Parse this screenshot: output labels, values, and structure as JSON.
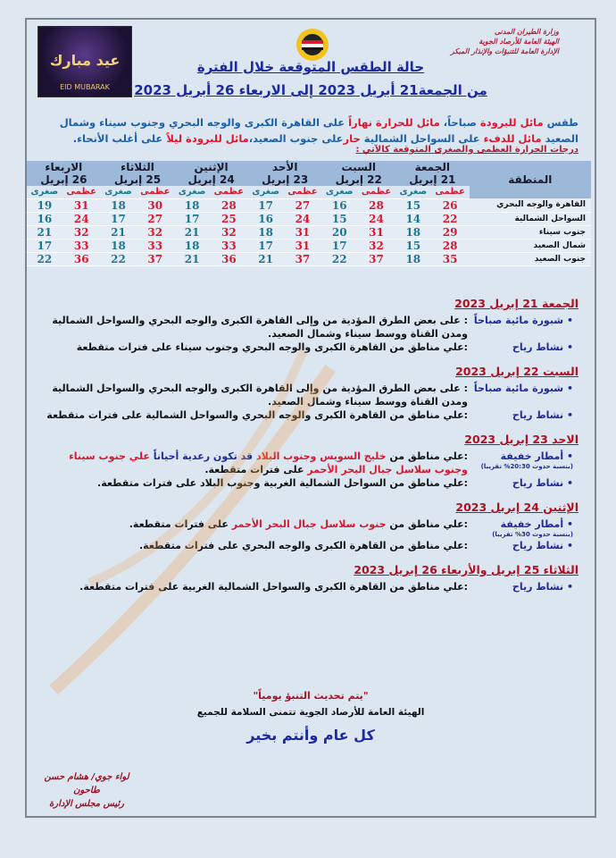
{
  "header": {
    "ministry": [
      "وزارة الطيران المدنى",
      "الهيئة العامة للأرصاد الجوية",
      "الإدارة العامة للتنبؤات والإنذار المبكر"
    ],
    "eid_image_text": "EID MUBARAK",
    "eid_image_arabic": "عيد مبارك"
  },
  "title": {
    "line1": "حالة الطقس المتوقعة خلال الفترة",
    "line2": "من الجمعة21 أبريل 2023  إلى الاربعاء 26 أبريل 2023"
  },
  "intro": {
    "p1": "طقس",
    "p2": "مائل للبرودة",
    "p3": "صباحاً،",
    "p4": "مائل للحرارة نهاراً",
    "p5": "على القاهرة الكبرى والوجه البحري وجنوب سيناء وشمال الصعيد",
    "p6": "مائل للدفء",
    "p7": "على السواحل الشمالية",
    "p8": "حار",
    "p9": "على جنوب الصعيد،",
    "p10": "مائل للبرودة ليلاً",
    "p11": "على أغلب الأنحاء."
  },
  "table_label": "درجات الحرارة العظمى والصغرى المتوقعة كالآتي :",
  "table": {
    "region_header": "المنطقة",
    "max_label": "عظمى",
    "min_label": "صغرى",
    "days": [
      {
        "day": "الجمعة",
        "date": "21 إبريل"
      },
      {
        "day": "السبت",
        "date": "22 إبريل"
      },
      {
        "day": "الأحد",
        "date": "23 إبريل"
      },
      {
        "day": "الإثنين",
        "date": "24 إبريل"
      },
      {
        "day": "الثلاثاء",
        "date": "25 إبريل"
      },
      {
        "day": "الاربعاء",
        "date": "26 إبريل"
      }
    ],
    "rows": [
      {
        "region": "القاهرة والوجه البحري",
        "temps": [
          [
            26,
            15
          ],
          [
            28,
            16
          ],
          [
            27,
            17
          ],
          [
            28,
            18
          ],
          [
            30,
            18
          ],
          [
            31,
            19
          ]
        ]
      },
      {
        "region": "السواحل الشمالية",
        "temps": [
          [
            22,
            14
          ],
          [
            24,
            15
          ],
          [
            24,
            16
          ],
          [
            25,
            17
          ],
          [
            27,
            17
          ],
          [
            24,
            16
          ]
        ]
      },
      {
        "region": "جنوب سيناء",
        "temps": [
          [
            29,
            18
          ],
          [
            31,
            20
          ],
          [
            31,
            18
          ],
          [
            32,
            21
          ],
          [
            32,
            21
          ],
          [
            32,
            21
          ]
        ]
      },
      {
        "region": "شمال الصعيد",
        "temps": [
          [
            28,
            15
          ],
          [
            32,
            17
          ],
          [
            31,
            17
          ],
          [
            33,
            18
          ],
          [
            33,
            18
          ],
          [
            33,
            17
          ]
        ]
      },
      {
        "region": "جنوب الصعيد",
        "temps": [
          [
            35,
            18
          ],
          [
            37,
            22
          ],
          [
            37,
            21
          ],
          [
            36,
            21
          ],
          [
            37,
            22
          ],
          [
            36,
            22
          ]
        ]
      }
    ]
  },
  "sections": [
    {
      "heading": "الجمعة 21 إبريل 2023",
      "items": [
        {
          "label": "شبورة مائية صباحاً",
          "segments": [
            {
              "t": ": على بعض الطرق المؤدية من وإلى القاهرة الكبرى والوجه البحري والسواحل الشمالية ومدن القناة ووسط سيناء وشمال الصعيد.",
              "c": ""
            }
          ]
        },
        {
          "label": "نشاط رياح",
          "segments": [
            {
              "t": ":علي مناطق من القاهرة الكبرى والوجه البحري وجنوب سيناء على فترات متقطعة",
              "c": ""
            }
          ]
        }
      ]
    },
    {
      "heading": "السبت 22 إبريل 2023",
      "items": [
        {
          "label": "شبورة مائية صباحاً",
          "segments": [
            {
              "t": ": على بعض الطرق المؤدية من وإلى القاهرة الكبرى والوجه البحري والسواحل الشمالية ومدن القناة ووسط سيناء وشمال الصعيد.",
              "c": ""
            }
          ]
        },
        {
          "label": "نشاط رياح",
          "segments": [
            {
              "t": ":علي مناطق من القاهرة الكبرى والوجه البحري والسواحل الشمالية على فترات متقطعة",
              "c": ""
            }
          ]
        }
      ]
    },
    {
      "heading": "الاحد 23 إبريل 2023",
      "items": [
        {
          "label": "أمطار خفيفة",
          "note": "(بنسبة حدوث 20:30% تقريبا)",
          "segments": [
            {
              "t": ":علي مناطق من ",
              "c": ""
            },
            {
              "t": "خليج السويس وجنوب البلاد",
              "c": "r"
            },
            {
              "t": " قد تكون رعدية أحياناً ",
              "c": "b"
            },
            {
              "t": "علي جنوب سيناء وجنوب سلاسل جبال البحر الأحمر",
              "c": "r"
            },
            {
              "t": " على فترات متقطعة.",
              "c": ""
            }
          ]
        },
        {
          "label": "نشاط رياح",
          "segments": [
            {
              "t": ":علي مناطق من السواحل الشمالية الغربية وجنوب البلاد على فترات متقطعة.",
              "c": ""
            }
          ]
        }
      ]
    },
    {
      "heading": "الإثنين 24 إبريل 2023",
      "items": [
        {
          "label": "أمطار خفيفة",
          "note": "(بنسبة حدوث 30% تقريبا)",
          "segments": [
            {
              "t": ":علي مناطق من ",
              "c": ""
            },
            {
              "t": "جنوب سلاسل جبال البحر الأحمر",
              "c": "r"
            },
            {
              "t": " على فترات متقطعة.",
              "c": ""
            }
          ]
        },
        {
          "label": "نشاط رياح",
          "segments": [
            {
              "t": ":علي مناطق من القاهرة الكبرى والوجه البحري على فترات متقطعة.",
              "c": ""
            }
          ]
        }
      ]
    },
    {
      "heading": "الثلاثاء 25 إبريل والأربعاء 26 إبريل 2023",
      "items": [
        {
          "label": "نشاط رياح",
          "segments": [
            {
              "t": ":علي مناطق من القاهرة الكبرى والسواحل الشمالية الغربية على فترات متقطعة.",
              "c": ""
            }
          ]
        }
      ]
    }
  ],
  "footer": {
    "update": "\"يتم تحديث التنبؤ يومياً\"",
    "wish": "الهيئة العامة للأرصاد الجوية تتمنى السلامة للجميع",
    "greeting": "كل عام وأنتم بخير"
  },
  "signature": {
    "name": "لواء جوي/ هشام حسن طاحون",
    "role": "رئيس مجلس الإدارة"
  },
  "watermark": "الهيئة العامة للأرصاد الجوية"
}
